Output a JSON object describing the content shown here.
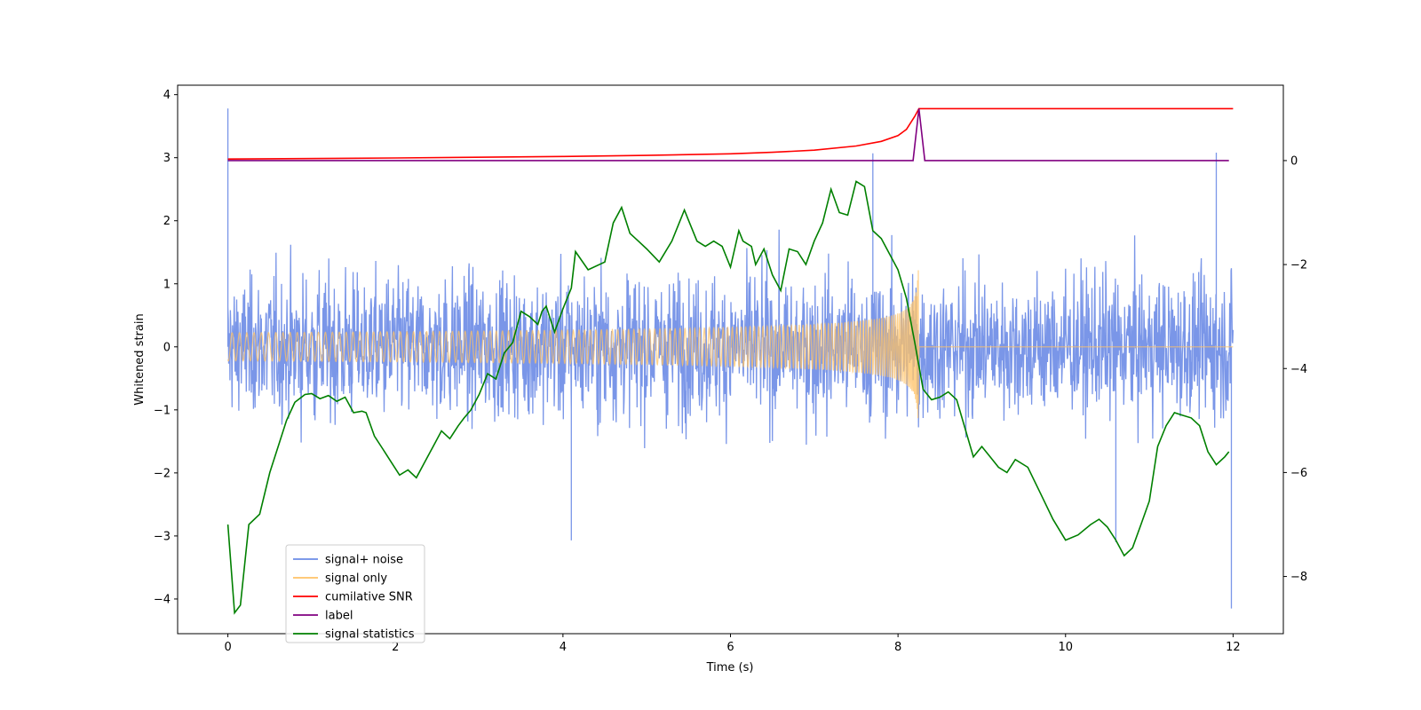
{
  "chart_data": {
    "type": "line",
    "xlabel": "Time (s)",
    "ylabel": "Whitened strain",
    "xlim": [
      -0.6,
      12.6
    ],
    "ylim": [
      -4.55,
      4.15
    ],
    "y2lim": [
      -9.1,
      1.45
    ],
    "xticks": [
      0,
      2,
      4,
      6,
      8,
      10,
      12
    ],
    "yticks": [
      -4,
      -3,
      -2,
      -1,
      0,
      1,
      2,
      3,
      4
    ],
    "y2ticks": [
      -8,
      -6,
      -4,
      -2,
      0
    ],
    "x_tick_labels": [
      "0",
      "2",
      "4",
      "6",
      "8",
      "10",
      "12"
    ],
    "y_tick_labels": [
      "−4",
      "−3",
      "−2",
      "−1",
      "0",
      "1",
      "2",
      "3",
      "4"
    ],
    "y2_tick_labels": [
      "−8",
      "−6",
      "−4",
      "−2",
      "0"
    ],
    "legend": {
      "location": "lower-left",
      "entries": [
        {
          "label": "signal+ noise",
          "color": "#6b8be6"
        },
        {
          "label": "signal only",
          "color": "#ffc266"
        },
        {
          "label": "cumilative SNR",
          "color": "#ff0000"
        },
        {
          "label": "label",
          "color": "#800080"
        },
        {
          "label": "signal statistics",
          "color": "#008000"
        }
      ]
    },
    "series": [
      {
        "name": "signal+ noise",
        "axis": "left",
        "color": "#6b8be6",
        "description": "whitened noise plus chirp, spans t=0..12, amplitude roughly ±1.5 with peaks to ~3.8 and dips to ~-4.2",
        "sigma": 0.55,
        "peaks": [
          [
            0.0,
            3.78
          ],
          [
            11.98,
            -4.15
          ],
          [
            11.8,
            3.08
          ],
          [
            7.7,
            3.07
          ],
          [
            10.6,
            -3.1
          ],
          [
            4.1,
            -3.07
          ]
        ]
      },
      {
        "name": "signal only",
        "axis": "left",
        "color": "#ffc266",
        "description": "inspiral chirp, near zero until ~5 s, grows to about ±1.5 at merger t=8.25 s, zero after",
        "t_merge": 8.25,
        "peak_amplitude": 1.5
      },
      {
        "name": "cumilative SNR",
        "axis": "right",
        "color": "#ff0000",
        "x": [
          0,
          2,
          4,
          5,
          6,
          6.5,
          7,
          7.5,
          7.8,
          8.0,
          8.1,
          8.2,
          8.25,
          12
        ],
        "y": [
          0.03,
          0.05,
          0.08,
          0.1,
          0.13,
          0.16,
          0.2,
          0.28,
          0.37,
          0.48,
          0.6,
          0.85,
          1.0,
          1.0
        ]
      },
      {
        "name": "label",
        "axis": "right",
        "color": "#800080",
        "x": [
          0,
          8.18,
          8.25,
          8.32,
          11.95
        ],
        "y": [
          0,
          0,
          1.0,
          0,
          0
        ]
      },
      {
        "name": "signal statistics",
        "axis": "right",
        "color": "#008000",
        "x": [
          0.0,
          0.08,
          0.15,
          0.25,
          0.38,
          0.5,
          0.6,
          0.7,
          0.8,
          0.92,
          1.0,
          1.1,
          1.2,
          1.3,
          1.4,
          1.5,
          1.6,
          1.65,
          1.75,
          1.85,
          1.95,
          2.05,
          2.15,
          2.25,
          2.35,
          2.45,
          2.55,
          2.65,
          2.75,
          2.82,
          2.9,
          3.0,
          3.1,
          3.2,
          3.3,
          3.4,
          3.5,
          3.6,
          3.7,
          3.75,
          3.8,
          3.9,
          4.0,
          4.1,
          4.15,
          4.3,
          4.5,
          4.6,
          4.7,
          4.8,
          4.9,
          5.0,
          5.15,
          5.3,
          5.45,
          5.5,
          5.6,
          5.7,
          5.8,
          5.9,
          6.0,
          6.1,
          6.15,
          6.25,
          6.3,
          6.4,
          6.5,
          6.6,
          6.7,
          6.8,
          6.9,
          7.0,
          7.1,
          7.2,
          7.3,
          7.4,
          7.5,
          7.6,
          7.7,
          7.8,
          7.9,
          8.0,
          8.1,
          8.2,
          8.3,
          8.4,
          8.5,
          8.6,
          8.7,
          8.8,
          8.9,
          9.0,
          9.1,
          9.2,
          9.3,
          9.4,
          9.55,
          9.7,
          9.85,
          10.0,
          10.15,
          10.3,
          10.4,
          10.5,
          10.6,
          10.7,
          10.8,
          10.9,
          11.0,
          11.1,
          11.2,
          11.3,
          11.4,
          11.5,
          11.6,
          11.7,
          11.8,
          11.9,
          11.95
        ],
        "y": [
          -7.0,
          -8.7,
          -8.55,
          -7.0,
          -6.8,
          -6.0,
          -5.5,
          -5.0,
          -4.65,
          -4.5,
          -4.48,
          -4.58,
          -4.52,
          -4.63,
          -4.55,
          -4.85,
          -4.82,
          -4.85,
          -5.3,
          -5.55,
          -5.8,
          -6.05,
          -5.95,
          -6.1,
          -5.8,
          -5.5,
          -5.2,
          -5.35,
          -5.1,
          -4.95,
          -4.8,
          -4.5,
          -4.1,
          -4.2,
          -3.7,
          -3.5,
          -2.9,
          -3.0,
          -3.15,
          -2.9,
          -2.8,
          -3.3,
          -2.85,
          -2.45,
          -1.75,
          -2.1,
          -1.95,
          -1.2,
          -0.9,
          -1.4,
          -1.55,
          -1.7,
          -1.95,
          -1.55,
          -0.95,
          -1.15,
          -1.55,
          -1.65,
          -1.55,
          -1.65,
          -2.05,
          -1.35,
          -1.55,
          -1.65,
          -2.0,
          -1.7,
          -2.2,
          -2.5,
          -1.7,
          -1.75,
          -2.0,
          -1.55,
          -1.2,
          -0.55,
          -1.0,
          -1.05,
          -0.4,
          -0.5,
          -1.35,
          -1.5,
          -1.8,
          -2.1,
          -2.65,
          -3.5,
          -4.4,
          -4.6,
          -4.55,
          -4.45,
          -4.6,
          -5.15,
          -5.7,
          -5.5,
          -5.7,
          -5.9,
          -6.0,
          -5.75,
          -5.9,
          -6.4,
          -6.9,
          -7.3,
          -7.2,
          -7.0,
          -6.9,
          -7.05,
          -7.3,
          -7.6,
          -7.45,
          -7.0,
          -6.55,
          -5.5,
          -5.1,
          -4.85,
          -4.9,
          -4.95,
          -5.1,
          -5.6,
          -5.85,
          -5.7,
          -5.6
        ]
      }
    ]
  }
}
